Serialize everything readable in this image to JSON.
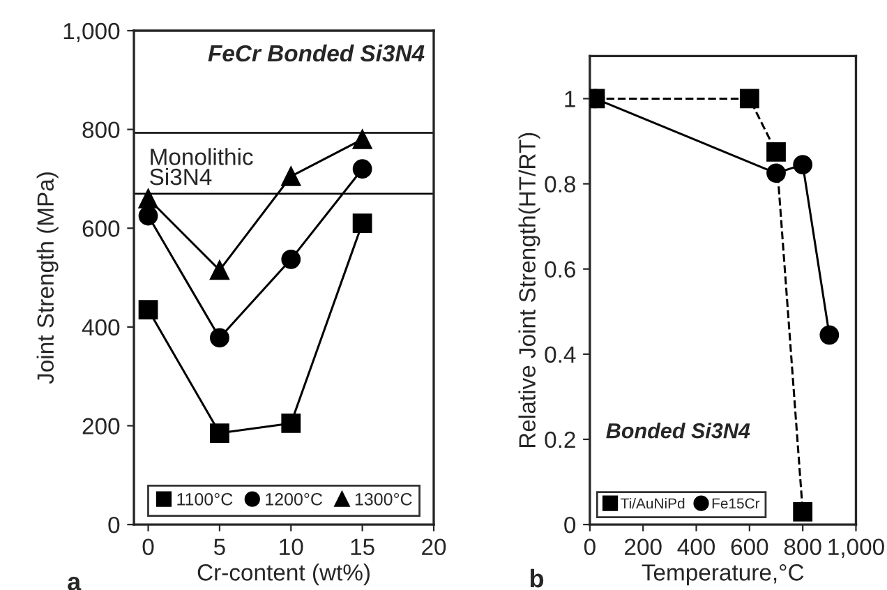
{
  "chart_data": [
    {
      "type": "line",
      "title": "FeCr Bonded Si3N4",
      "xlabel": "Cr-content (wt%)",
      "ylabel": "Joint Strength (MPa)",
      "x": [
        0,
        5,
        10,
        15
      ],
      "series": [
        {
          "name": "1100°C",
          "color": "#000000",
          "marker": "square",
          "line_style": "solid",
          "values": [
            435,
            185,
            205,
            610
          ]
        },
        {
          "name": "1200°C",
          "color": "#000000",
          "marker": "circle",
          "line_style": "solid",
          "values": [
            625,
            378,
            537,
            720
          ]
        },
        {
          "name": "1300°C",
          "color": "#000000",
          "marker": "triangle",
          "line_style": "solid",
          "values": [
            660,
            515,
            705,
            780
          ]
        }
      ],
      "ref_lines": [
        {
          "axis": "y",
          "value": 793,
          "label": null
        },
        {
          "axis": "y",
          "value": 670,
          "label": "Monolithic\nSi3N4"
        }
      ],
      "annotations": [
        "a"
      ],
      "xlim": [
        -1,
        20
      ],
      "xticks": [
        0,
        5,
        10,
        15,
        20
      ],
      "ylim": [
        0,
        1000
      ],
      "yticks": [
        {
          "value": 0,
          "label": "0"
        },
        {
          "value": 200,
          "label": "200"
        },
        {
          "value": 400,
          "label": "400"
        },
        {
          "value": 600,
          "label": "600"
        },
        {
          "value": 800,
          "label": "800"
        },
        {
          "value": 1000,
          "label": "1,000"
        }
      ],
      "grid": false,
      "legend": "bottom"
    },
    {
      "type": "line",
      "title": "Bonded Si3N4",
      "xlabel": "Temperature,°C",
      "ylabel": "Relative Joint Strength(HT/RT)",
      "series": [
        {
          "name": "Ti/AuNiPd",
          "color": "#000000",
          "marker": "square",
          "line_style": "dashed",
          "x": [
            20,
            600,
            700,
            800
          ],
          "values": [
            1.0,
            1.0,
            0.875,
            0.03
          ]
        },
        {
          "name": "Fe15Cr",
          "color": "#000000",
          "marker": "circle",
          "line_style": "solid",
          "x": [
            20,
            700,
            800,
            900
          ],
          "values": [
            1.0,
            0.825,
            0.845,
            0.445
          ]
        }
      ],
      "annotations": [
        "b"
      ],
      "xlim": [
        0,
        1000
      ],
      "xticks": [
        0,
        200,
        400,
        600,
        800,
        {
          "value": 1000,
          "label": "1,000"
        }
      ],
      "ylim": [
        0,
        1.1
      ],
      "yticks": [
        0,
        0.2,
        0.4,
        0.6,
        0.8,
        1
      ],
      "grid": false,
      "legend": "bottom left"
    }
  ]
}
